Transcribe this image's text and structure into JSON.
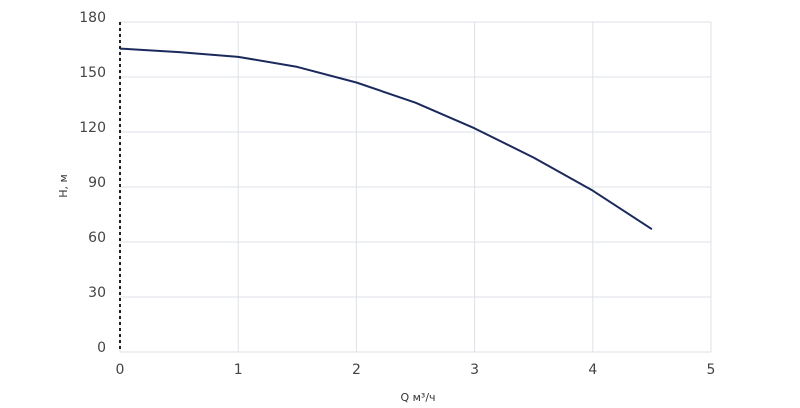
{
  "chart_data": {
    "type": "line",
    "x_label": "Q м³/ч",
    "y_label": "H, м",
    "x": [
      0,
      0.5,
      1,
      1.5,
      2,
      2.5,
      3,
      3.5,
      4,
      4.5
    ],
    "series": [
      {
        "name": "H",
        "color": "#1b2a5c",
        "values": [
          165.5,
          163.6,
          161,
          155.5,
          147,
          136,
          122,
          106,
          88,
          67
        ]
      }
    ],
    "xlim": [
      0,
      5
    ],
    "xticks": [
      0,
      1,
      2,
      3,
      4,
      5
    ],
    "ylim": [
      0,
      180
    ],
    "yticks": [
      0,
      30,
      60,
      90,
      120,
      150,
      180
    ],
    "grid": true
  }
}
